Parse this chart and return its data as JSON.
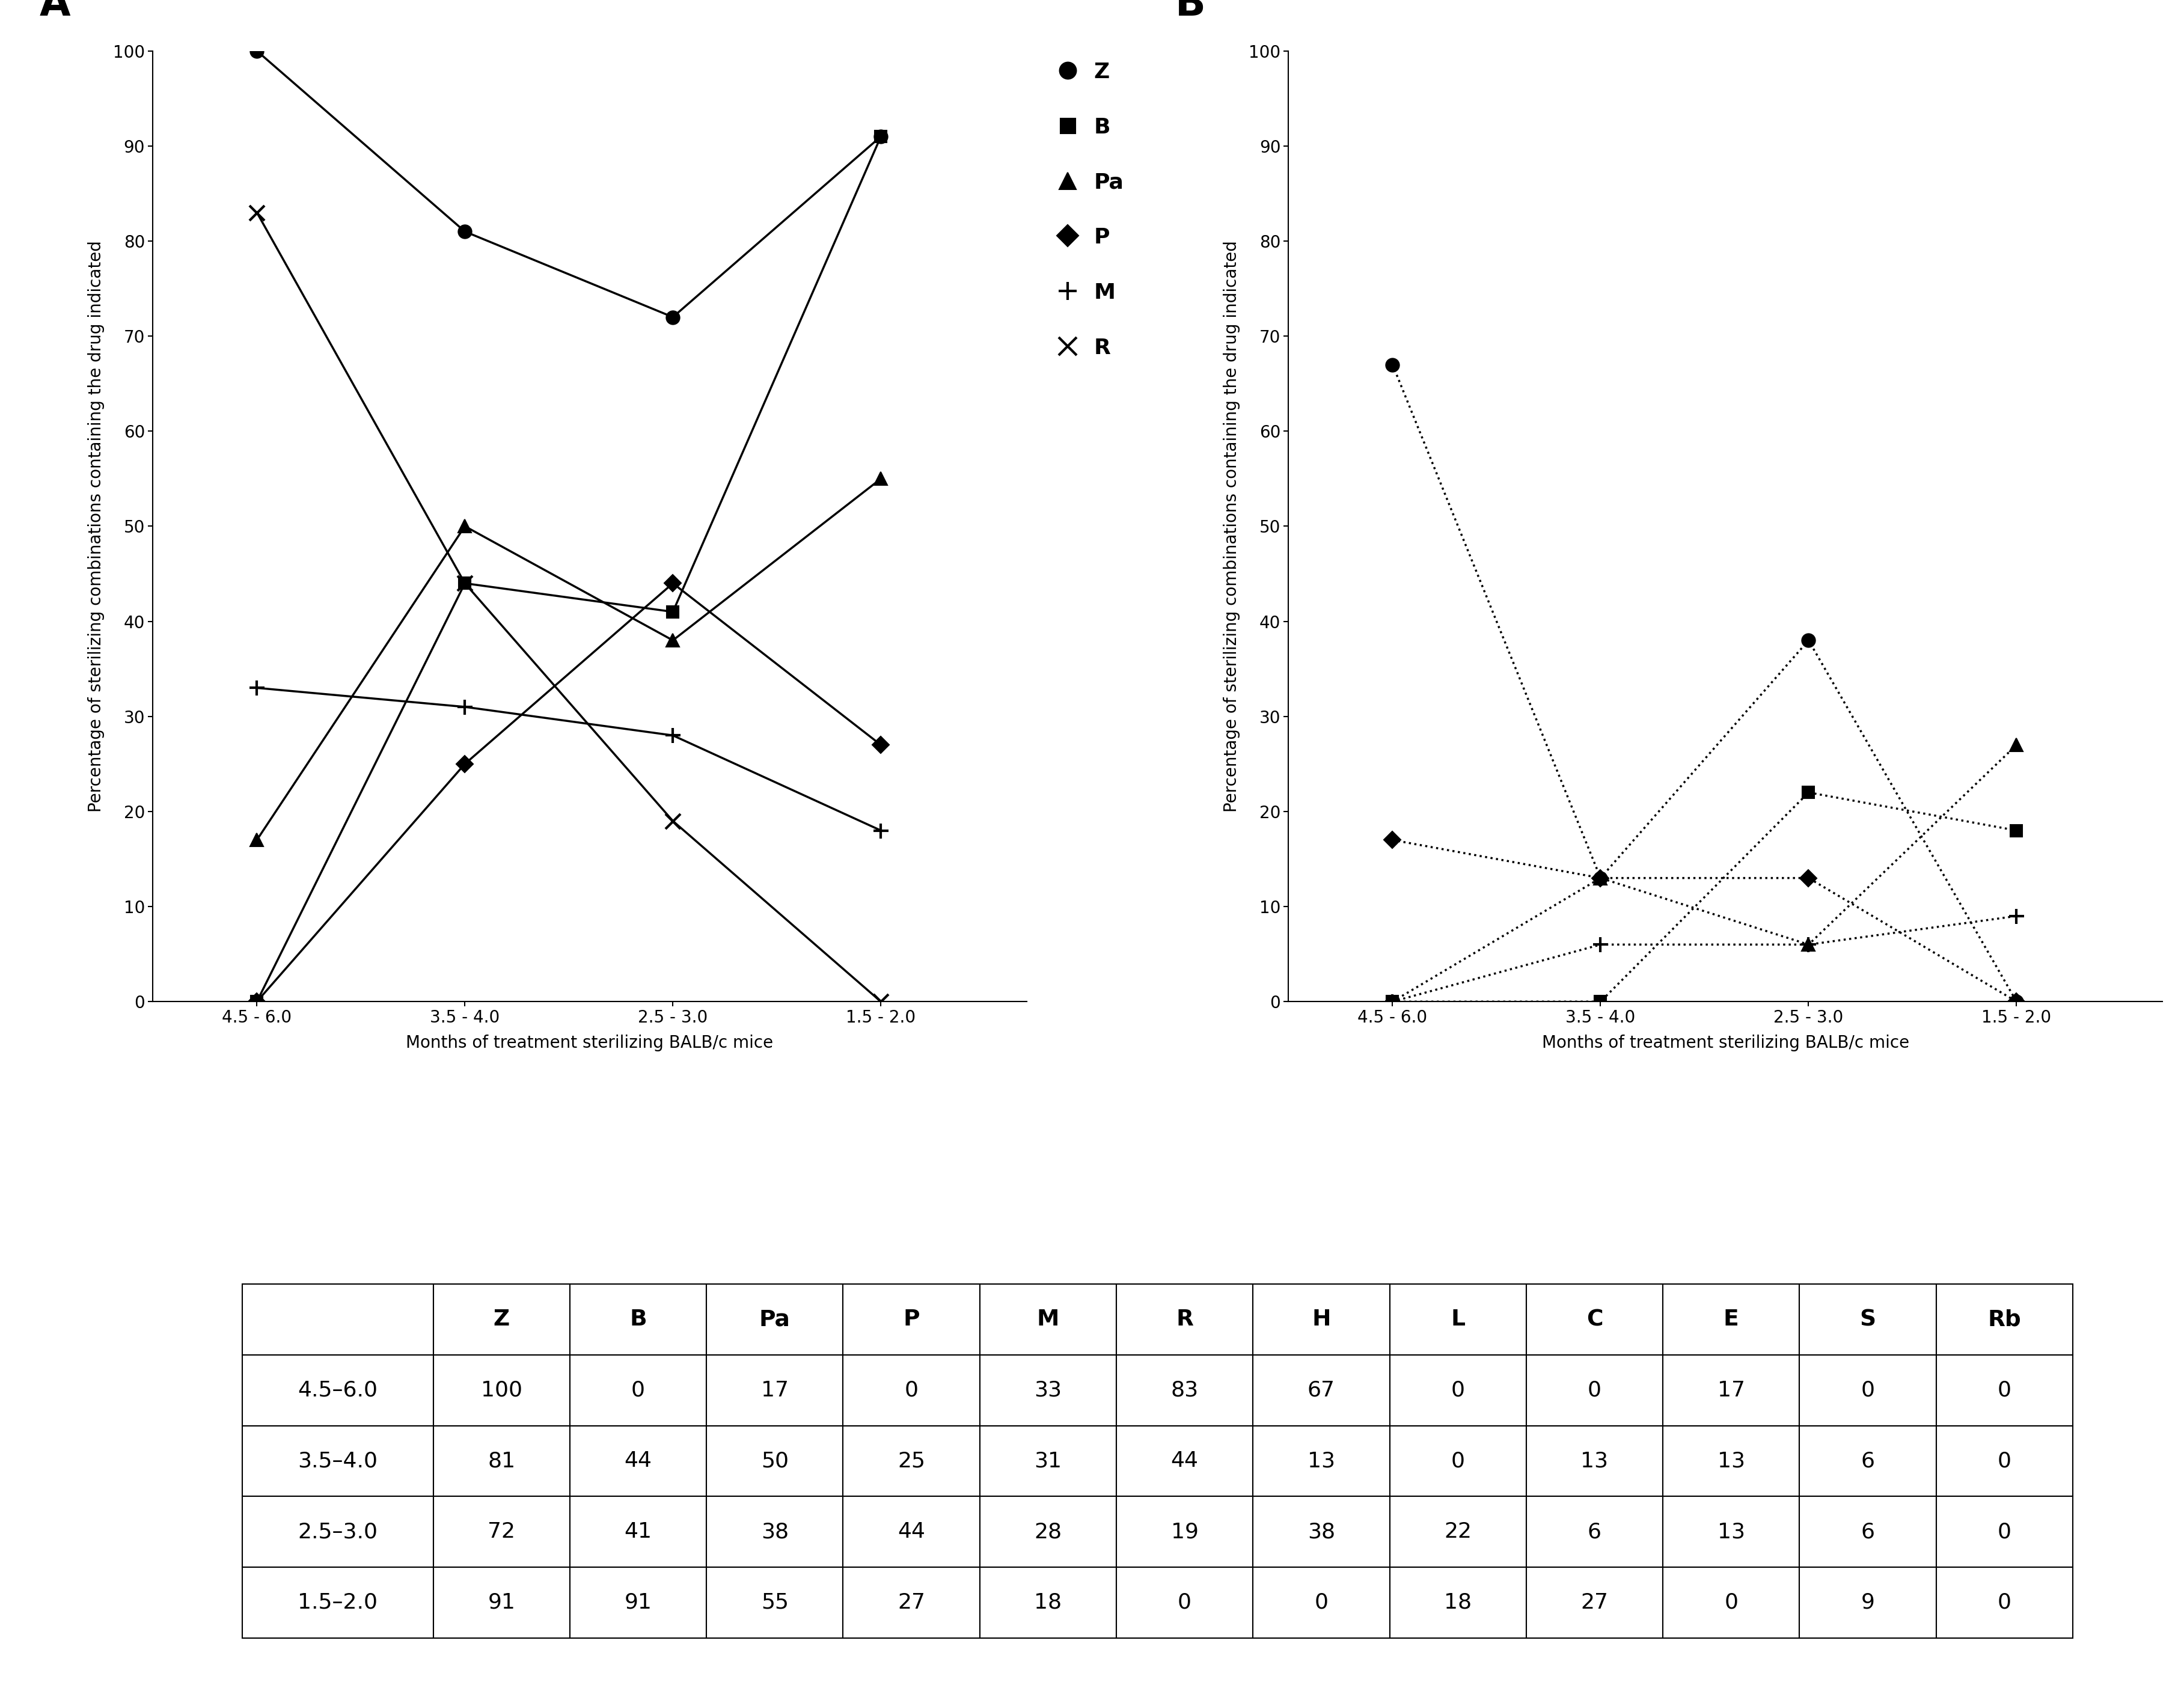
{
  "x_labels": [
    "4.5 - 6.0",
    "3.5 - 4.0",
    "2.5 - 3.0",
    "1.5 - 2.0"
  ],
  "x_positions": [
    0,
    1,
    2,
    3
  ],
  "panel_A": {
    "title": "A",
    "series": [
      {
        "label": "Z",
        "values": [
          100,
          81,
          72,
          91
        ],
        "marker": "o",
        "linestyle": "-",
        "markersize": 16
      },
      {
        "label": "B",
        "values": [
          0,
          44,
          41,
          91
        ],
        "marker": "s",
        "linestyle": "-",
        "markersize": 14
      },
      {
        "label": "Pa",
        "values": [
          17,
          50,
          38,
          55
        ],
        "marker": "^",
        "linestyle": "-",
        "markersize": 16
      },
      {
        "label": "P",
        "values": [
          0,
          25,
          44,
          27
        ],
        "marker": "D",
        "linestyle": "-",
        "markersize": 14
      },
      {
        "label": "M",
        "values": [
          33,
          31,
          28,
          18
        ],
        "marker": "+",
        "linestyle": "-",
        "markersize": 18
      },
      {
        "label": "R",
        "values": [
          83,
          44,
          19,
          0
        ],
        "marker": "x",
        "linestyle": "-",
        "markersize": 18
      }
    ]
  },
  "panel_B": {
    "title": "B",
    "series": [
      {
        "label": "H",
        "values": [
          67,
          13,
          38,
          0
        ],
        "marker": "o",
        "linestyle": ":",
        "markersize": 16
      },
      {
        "label": "L",
        "values": [
          0,
          0,
          22,
          18
        ],
        "marker": "s",
        "linestyle": ":",
        "markersize": 14
      },
      {
        "label": "C",
        "values": [
          0,
          13,
          6,
          27
        ],
        "marker": "^",
        "linestyle": ":",
        "markersize": 16
      },
      {
        "label": "E",
        "values": [
          17,
          13,
          13,
          0
        ],
        "marker": "D",
        "linestyle": ":",
        "markersize": 14
      },
      {
        "label": "S",
        "values": [
          0,
          6,
          6,
          9
        ],
        "marker": "+",
        "linestyle": ":",
        "markersize": 18
      }
    ]
  },
  "ylabel": "Percentage of sterilizing combinations containing the drug indicated",
  "xlabel": "Months of treatment sterilizing BALB/c mice",
  "ylim": [
    0,
    100
  ],
  "yticks": [
    0,
    10,
    20,
    30,
    40,
    50,
    60,
    70,
    80,
    90,
    100
  ],
  "table": {
    "row_labels": [
      "4.5–6.0",
      "3.5–4.0",
      "2.5–3.0",
      "1.5–2.0"
    ],
    "col_labels": [
      "",
      "Z",
      "B",
      "Pa",
      "P",
      "M",
      "R",
      "H",
      "L",
      "C",
      "E",
      "S",
      "Rb"
    ],
    "data": [
      [
        100,
        0,
        17,
        0,
        33,
        83,
        67,
        0,
        0,
        17,
        0,
        0
      ],
      [
        81,
        44,
        50,
        25,
        31,
        44,
        13,
        0,
        13,
        13,
        6,
        0
      ],
      [
        72,
        41,
        38,
        44,
        28,
        19,
        38,
        22,
        6,
        13,
        6,
        0
      ],
      [
        91,
        91,
        55,
        27,
        18,
        0,
        0,
        18,
        27,
        0,
        9,
        0
      ]
    ]
  },
  "title_fontsize": 48,
  "axis_label_fontsize": 20,
  "tick_fontsize": 20,
  "legend_fontsize": 26,
  "table_fontsize": 26
}
